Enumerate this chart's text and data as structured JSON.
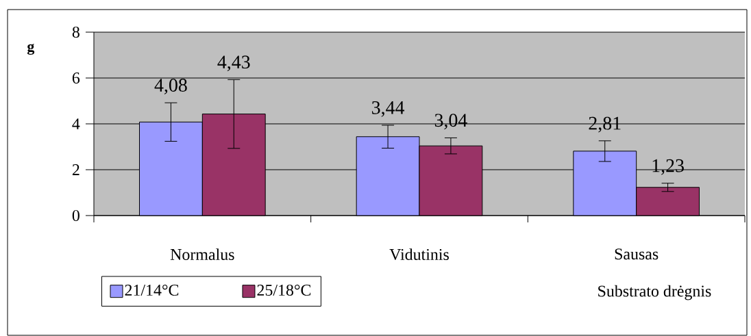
{
  "chart_data": {
    "type": "bar",
    "ylabel": "g",
    "xlabel": "Substrato drėgnis",
    "categories": [
      "Normalus",
      "Vidutinis",
      "Sausas"
    ],
    "series": [
      {
        "name": "21/14°C",
        "color": "#9999ff",
        "values": [
          4.08,
          3.44,
          2.81
        ],
        "errors": [
          0.84,
          0.5,
          0.45
        ],
        "value_labels": [
          "4,08",
          "3,44",
          "2,81"
        ]
      },
      {
        "name": "25/18°C",
        "color": "#993366",
        "values": [
          4.43,
          3.04,
          1.23
        ],
        "errors": [
          1.5,
          0.35,
          0.18
        ],
        "value_labels": [
          "4,43",
          "3,04",
          "1,23"
        ]
      }
    ],
    "ylim": [
      0,
      8
    ],
    "yticks": [
      0,
      2,
      4,
      6,
      8
    ],
    "grid": "y",
    "legend": "bottom left"
  }
}
